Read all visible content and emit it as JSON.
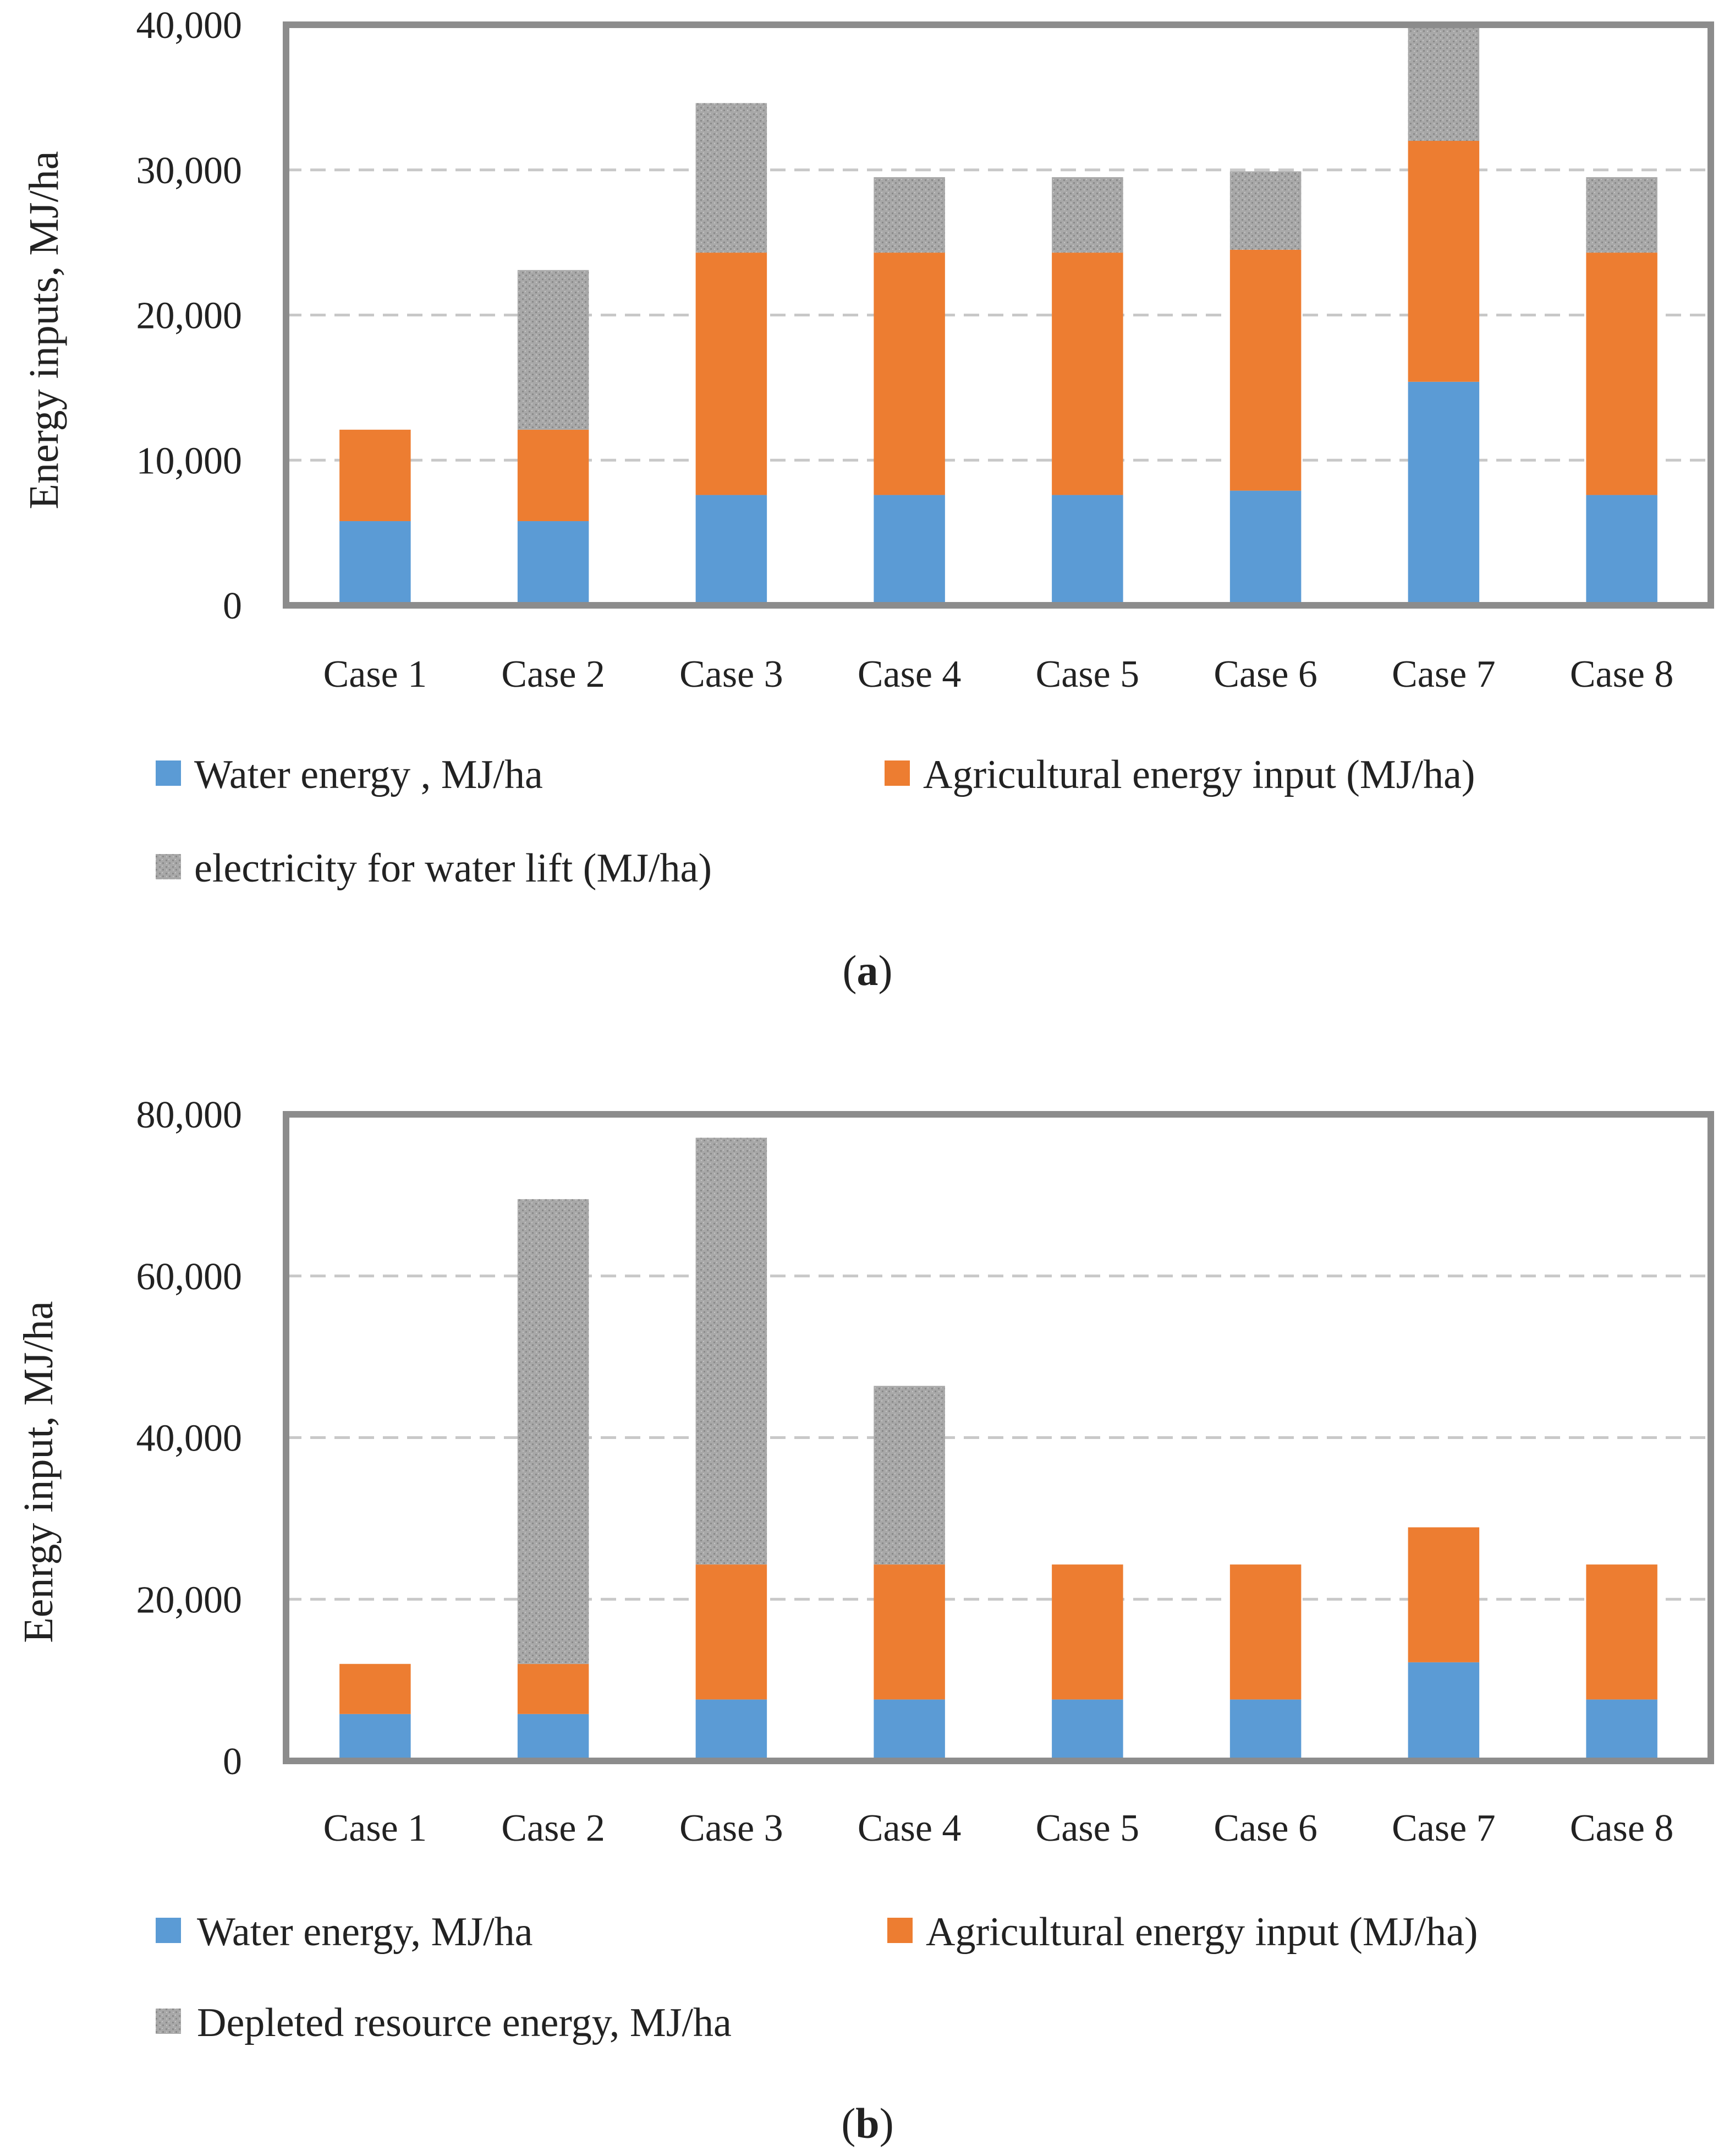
{
  "chart_data": [
    {
      "type": "bar",
      "stacked": true,
      "panel_label": "a",
      "categories": [
        "Case 1",
        "Case 2",
        "Case 3",
        "Case 4",
        "Case 5",
        "Case 6",
        "Case 7",
        "Case 8"
      ],
      "ylabel": "Energy inputs, MJ/ha",
      "xlabel": "",
      "ylim": [
        0,
        40000
      ],
      "yticks": [
        0,
        10000,
        20000,
        30000,
        40000
      ],
      "ytick_labels": [
        "0",
        "10,000",
        "20,000",
        "30,000",
        "40,000"
      ],
      "grid": true,
      "legend_position": "bottom",
      "series": [
        {
          "name": "Water energy , MJ/ha",
          "color": "#5b9bd5",
          "pattern": "solid",
          "values": [
            5800,
            5800,
            7600,
            7600,
            7600,
            7900,
            15400,
            7600
          ]
        },
        {
          "name": "Agricultural energy input (MJ/ha)",
          "color": "#ed7d31",
          "pattern": "solid",
          "values": [
            6300,
            6300,
            16700,
            16700,
            16700,
            16600,
            16600,
            16700
          ]
        },
        {
          "name": "electricity for water lift (MJ/ha)",
          "color": "#a5a5a5",
          "pattern": "speckled",
          "values": [
            0,
            11000,
            10300,
            5200,
            5200,
            5400,
            8000,
            5200
          ]
        }
      ]
    },
    {
      "type": "bar",
      "stacked": true,
      "panel_label": "b",
      "categories": [
        "Case 1",
        "Case 2",
        "Case 3",
        "Case 4",
        "Case 5",
        "Case 6",
        "Case 7",
        "Case 8"
      ],
      "ylabel": "Eenrgy input, MJ/ha",
      "xlabel": "",
      "ylim": [
        0,
        80000
      ],
      "yticks": [
        0,
        20000,
        40000,
        60000,
        80000
      ],
      "ytick_labels": [
        "0",
        "20,000",
        "40,000",
        "60,000",
        "80,000"
      ],
      "grid": true,
      "legend_position": "bottom",
      "series": [
        {
          "name": "Water energy, MJ/ha",
          "color": "#5b9bd5",
          "pattern": "solid",
          "values": [
            5800,
            5800,
            7600,
            7600,
            7600,
            7600,
            12200,
            7600
          ]
        },
        {
          "name": "Agricultural energy input (MJ/ha)",
          "color": "#ed7d31",
          "pattern": "solid",
          "values": [
            6200,
            6200,
            16700,
            16700,
            16700,
            16700,
            16700,
            16700
          ]
        },
        {
          "name": "Depleted resource energy, MJ/ha",
          "color": "#a5a5a5",
          "pattern": "speckled",
          "values": [
            0,
            57500,
            52800,
            22100,
            0,
            0,
            0,
            0
          ]
        }
      ]
    }
  ],
  "captions": [
    {
      "open": "(",
      "letter": "a",
      "close": ")"
    },
    {
      "open": "(",
      "letter": "b",
      "close": ")"
    }
  ]
}
